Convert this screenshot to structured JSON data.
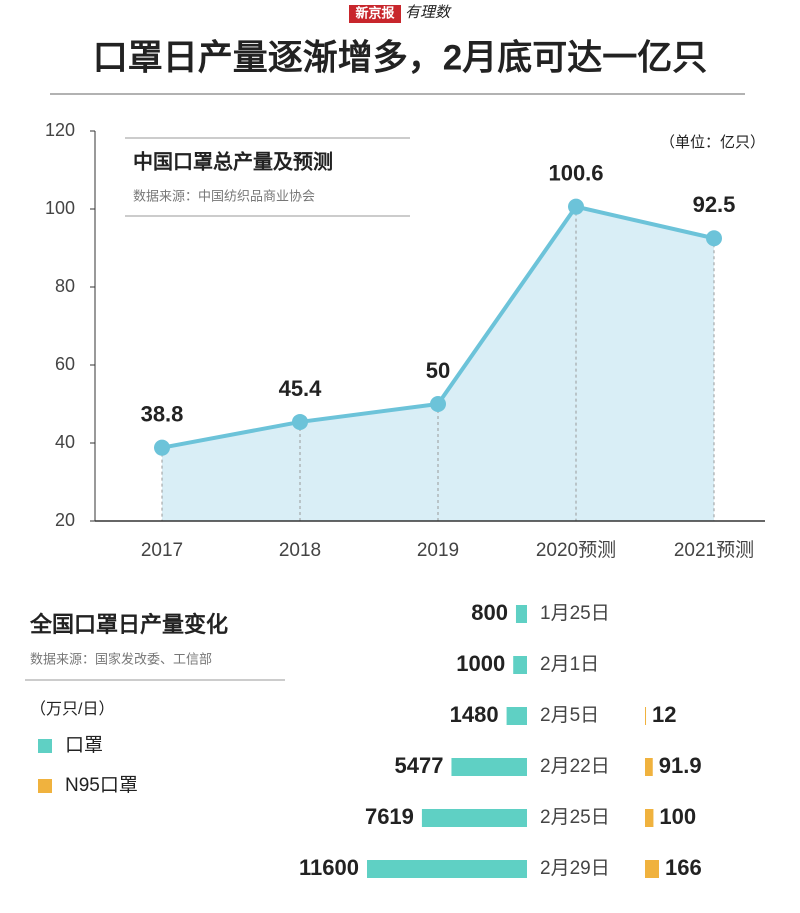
{
  "header": {
    "brand": "新京报",
    "column": "有理数",
    "title": "口罩日产量逐渐增多，2月底可达一亿只"
  },
  "chart_data": [
    {
      "type": "line",
      "title": "中国口罩总产量及预测",
      "subtitle": "数据来源：中国纺织品商业协会",
      "unit": "（单位：亿只）",
      "categories": [
        "2017",
        "2018",
        "2019",
        "2020预测",
        "2021预测"
      ],
      "values": [
        38.8,
        45.4,
        50,
        100.6,
        92.5
      ],
      "color": "#6cc3d9",
      "fill": "#d9eef6",
      "ylim": [
        20,
        120
      ],
      "yticks": [
        20,
        40,
        60,
        80,
        100,
        120
      ]
    },
    {
      "type": "hbar",
      "title": "全国口罩日产量变化",
      "subtitle": "数据来源：国家发改委、工信部",
      "unit": "（万只/日）",
      "categories": [
        "1月25日",
        "2月1日",
        "2月5日",
        "2月22日",
        "2月25日",
        "2月29日"
      ],
      "series": [
        {
          "name": "口罩",
          "color": "#5fd0c4",
          "values": [
            800,
            1000,
            1480,
            5477,
            7619,
            11600
          ]
        },
        {
          "name": "N95口罩",
          "color": "#f0b23e",
          "values": [
            null,
            null,
            12,
            91.9,
            100,
            166
          ]
        }
      ]
    }
  ]
}
